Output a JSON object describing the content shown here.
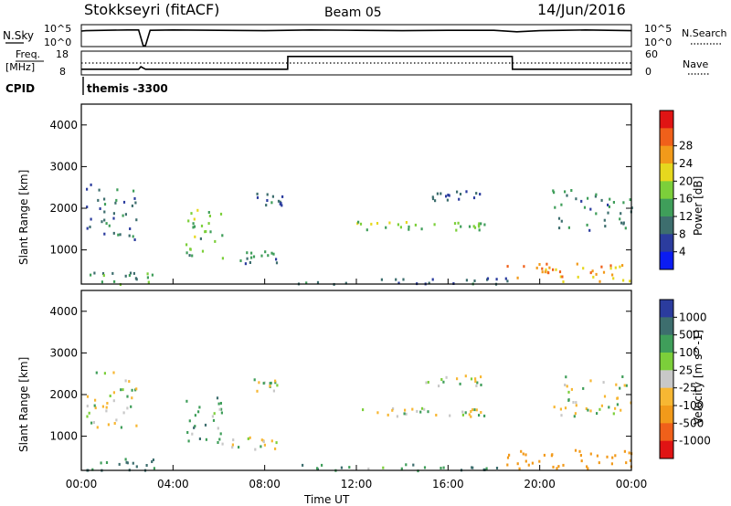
{
  "header": {
    "station": "Stokkseyri (fitACF)",
    "beam": "Beam 05",
    "date": "14/Jun/2016"
  },
  "noise_panel": {
    "left_label": "N.Sky",
    "left_ticks": [
      "10^5",
      "10^0"
    ],
    "right_ticks": [
      "10^5",
      "10^0"
    ],
    "right_label": "N.Search"
  },
  "freq_panel": {
    "left_label_1": "Freq.",
    "left_label_2": "[MHz]",
    "left_ticks": [
      "18",
      "8"
    ],
    "right_ticks": [
      "60",
      "0"
    ],
    "right_label": "Nave"
  },
  "cpid": {
    "label": "CPID",
    "value": "themis -3300"
  },
  "colors": {
    "power": [
      "#0b1cf2",
      "#2b3c9e",
      "#3d6e6e",
      "#3f9e5a",
      "#7ccf3a",
      "#e6d81e",
      "#f29a1a",
      "#f0601a",
      "#e01414"
    ],
    "velocity": [
      "#2b3c9e",
      "#3d6e6e",
      "#3f9e5a",
      "#7ccf3a",
      "#c8c8c8",
      "#f7b733",
      "#f29a1a",
      "#f0601a",
      "#e01414"
    ],
    "ground": "#c8c8c8"
  },
  "chart_data": [
    {
      "type": "line",
      "title": "N.Sky / N.Search noise",
      "x_range_hours": [
        0,
        24
      ],
      "y_scale": "log",
      "y_ticks": [
        "10^5",
        "10^0"
      ],
      "series": [
        {
          "name": "N.Sky",
          "x": [
            0,
            0.2,
            1,
            2,
            2.5,
            2.7,
            2.8,
            3,
            4,
            6,
            8,
            9,
            10,
            12,
            14,
            16,
            18,
            19,
            20,
            21,
            22,
            23,
            24
          ],
          "y": [
            4,
            4.1,
            4.2,
            4.3,
            4.3,
            0,
            0,
            4.2,
            4.3,
            4.2,
            4.1,
            4.2,
            4.3,
            4.2,
            4.1,
            4.2,
            4.2,
            3.8,
            4.1,
            4.2,
            4.3,
            4.2,
            4.1
          ]
        }
      ]
    },
    {
      "type": "line",
      "title": "Freq. / Nave",
      "x_range_hours": [
        0,
        24
      ],
      "y_left_ticks": [
        "18",
        "8"
      ],
      "y_right_ticks": [
        "60",
        "0"
      ],
      "series": [
        {
          "name": "Freq.",
          "x": [
            0,
            2.5,
            2.6,
            2.8,
            3,
            9,
            9.01,
            18.8,
            18.81,
            24
          ],
          "y": [
            9.6,
            9.6,
            11,
            9.6,
            9.6,
            9.6,
            16.6,
            16.6,
            9.6,
            9.6
          ]
        },
        {
          "name": "Nave",
          "x": [
            0,
            24
          ],
          "y": [
            30,
            30
          ]
        }
      ]
    },
    {
      "type": "heatmap",
      "title": "Power",
      "xlabel": "",
      "ylabel": "Slant Range [km]",
      "x_ticks": [
        "00:00",
        "04:00",
        "08:00",
        "12:00",
        "16:00",
        "20:00",
        "00:00"
      ],
      "y_ticks": [
        1000,
        2000,
        3000,
        4000
      ],
      "xlim_hours": [
        0,
        24
      ],
      "ylim_km": [
        180,
        4500
      ],
      "colorbar_label": "Power [dB]",
      "colorbar_ticks": [
        4,
        8,
        12,
        16,
        20,
        24,
        28
      ],
      "regions": [
        {
          "t": [
            0.2,
            2.5
          ],
          "r": [
            1200,
            2600
          ],
          "p": 8
        },
        {
          "t": [
            0.2,
            3.2
          ],
          "r": [
            200,
            500
          ],
          "p": 12
        },
        {
          "t": [
            4.5,
            6.2
          ],
          "r": [
            800,
            2000
          ],
          "p": 14
        },
        {
          "t": [
            6.5,
            8.5
          ],
          "r": [
            700,
            1000
          ],
          "p": 10
        },
        {
          "t": [
            7.5,
            8.8
          ],
          "r": [
            2100,
            2400
          ],
          "p": 8
        },
        {
          "t": [
            9,
            19
          ],
          "r": [
            200,
            350
          ],
          "p": 8
        },
        {
          "t": [
            12,
            15.5
          ],
          "r": [
            1500,
            1700
          ],
          "p": 16
        },
        {
          "t": [
            16,
            17.6
          ],
          "r": [
            1500,
            1700
          ],
          "p": 14
        },
        {
          "t": [
            15,
            17.5
          ],
          "r": [
            2200,
            2500
          ],
          "p": 8
        },
        {
          "t": [
            18.5,
            21
          ],
          "r": [
            250,
            700
          ],
          "p": 24
        },
        {
          "t": [
            21.5,
            24
          ],
          "r": [
            250,
            700
          ],
          "p": 22
        },
        {
          "t": [
            20.5,
            24
          ],
          "r": [
            1500,
            2500
          ],
          "p": 10
        }
      ]
    },
    {
      "type": "heatmap",
      "title": "Velocity",
      "xlabel": "Time UT",
      "ylabel": "Slant Range [km]",
      "x_ticks": [
        "00:00",
        "04:00",
        "08:00",
        "12:00",
        "16:00",
        "20:00",
        "00:00"
      ],
      "y_ticks": [
        1000,
        2000,
        3000,
        4000
      ],
      "xlim_hours": [
        0,
        24
      ],
      "ylim_km": [
        180,
        4500
      ],
      "colorbar_label": "Velocity [m s^-1]",
      "colorbar_ticks": [
        1000,
        500,
        100,
        25,
        -25,
        -100,
        -500,
        -1000
      ],
      "regions": [
        {
          "t": [
            0.2,
            2.5
          ],
          "r": [
            1200,
            2600
          ],
          "v": 0
        },
        {
          "t": [
            0.2,
            3.2
          ],
          "r": [
            200,
            500
          ],
          "v": 150
        },
        {
          "t": [
            4.5,
            6.2
          ],
          "r": [
            800,
            2000
          ],
          "v": 50
        },
        {
          "t": [
            6.5,
            8.5
          ],
          "r": [
            700,
            1000
          ],
          "v": 0
        },
        {
          "t": [
            7.5,
            8.8
          ],
          "r": [
            2100,
            2400
          ],
          "v": 0
        },
        {
          "t": [
            9,
            19
          ],
          "r": [
            200,
            350
          ],
          "v": 80
        },
        {
          "t": [
            12,
            15.5
          ],
          "r": [
            1500,
            1700
          ],
          "v": 0
        },
        {
          "t": [
            16,
            17.6
          ],
          "r": [
            1500,
            1700
          ],
          "v": 0
        },
        {
          "t": [
            15,
            17.5
          ],
          "r": [
            2200,
            2500
          ],
          "v": 0
        },
        {
          "t": [
            18.5,
            21
          ],
          "r": [
            250,
            700
          ],
          "v": -200
        },
        {
          "t": [
            21.5,
            24
          ],
          "r": [
            250,
            700
          ],
          "v": -300
        },
        {
          "t": [
            20.5,
            24
          ],
          "r": [
            1500,
            2500
          ],
          "v": 0
        }
      ]
    }
  ]
}
